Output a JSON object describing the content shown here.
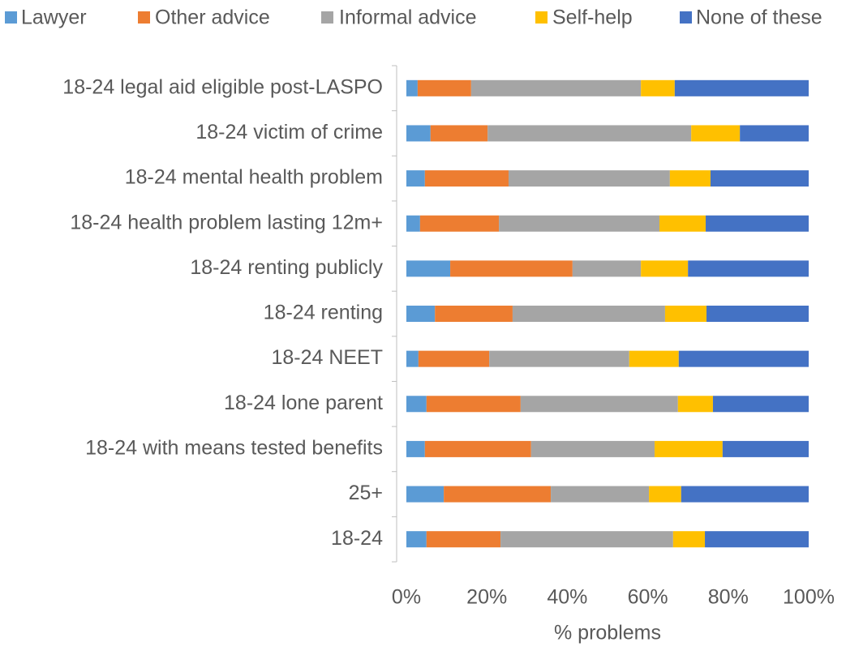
{
  "chart_data": {
    "type": "stacked_barh",
    "categories": [
      "18-24 legal aid eligible post-LASPO",
      "18-24 victim of crime",
      "18-24 mental health problem",
      "18-24 health problem lasting 12m+",
      "18-24 renting publicly",
      "18-24 renting",
      "18-24 NEET",
      "18-24 lone parent",
      "18-24 with means tested benefits",
      "25+",
      "18-24"
    ],
    "series": [
      {
        "name": "Lawyer",
        "color": "#5b9bd5",
        "values": [
          2.8,
          6.0,
          4.6,
          3.4,
          10.9,
          7.1,
          3.0,
          5.0,
          4.6,
          9.3,
          5.0
        ]
      },
      {
        "name": "Other advice",
        "color": "#ed7d31",
        "values": [
          13.3,
          14.2,
          20.8,
          19.6,
          30.4,
          19.3,
          17.6,
          23.4,
          26.4,
          26.6,
          18.4
        ]
      },
      {
        "name": "Informal advice",
        "color": "#a5a5a5",
        "values": [
          42.2,
          50.6,
          40.1,
          39.9,
          17.0,
          37.9,
          34.8,
          39.1,
          30.7,
          24.4,
          42.9
        ]
      },
      {
        "name": "Self-help",
        "color": "#ffc000",
        "values": [
          8.4,
          12.1,
          10.1,
          11.5,
          11.7,
          10.3,
          12.3,
          8.7,
          16.9,
          8.0,
          7.9
        ]
      },
      {
        "name": "None of these",
        "color": "#4472c4",
        "values": [
          33.3,
          17.1,
          24.4,
          25.6,
          30.0,
          25.4,
          32.3,
          23.8,
          21.4,
          31.7,
          25.8
        ]
      }
    ],
    "xlabel": "% problems",
    "xlim": [
      0,
      100
    ],
    "xticks": [
      {
        "value": 0,
        "label": "0%"
      },
      {
        "value": 20,
        "label": "20%"
      },
      {
        "value": 40,
        "label": "40%"
      },
      {
        "value": 60,
        "label": "60%"
      },
      {
        "value": 80,
        "label": "80%"
      },
      {
        "value": 100,
        "label": "100%"
      }
    ],
    "legend": "top"
  }
}
